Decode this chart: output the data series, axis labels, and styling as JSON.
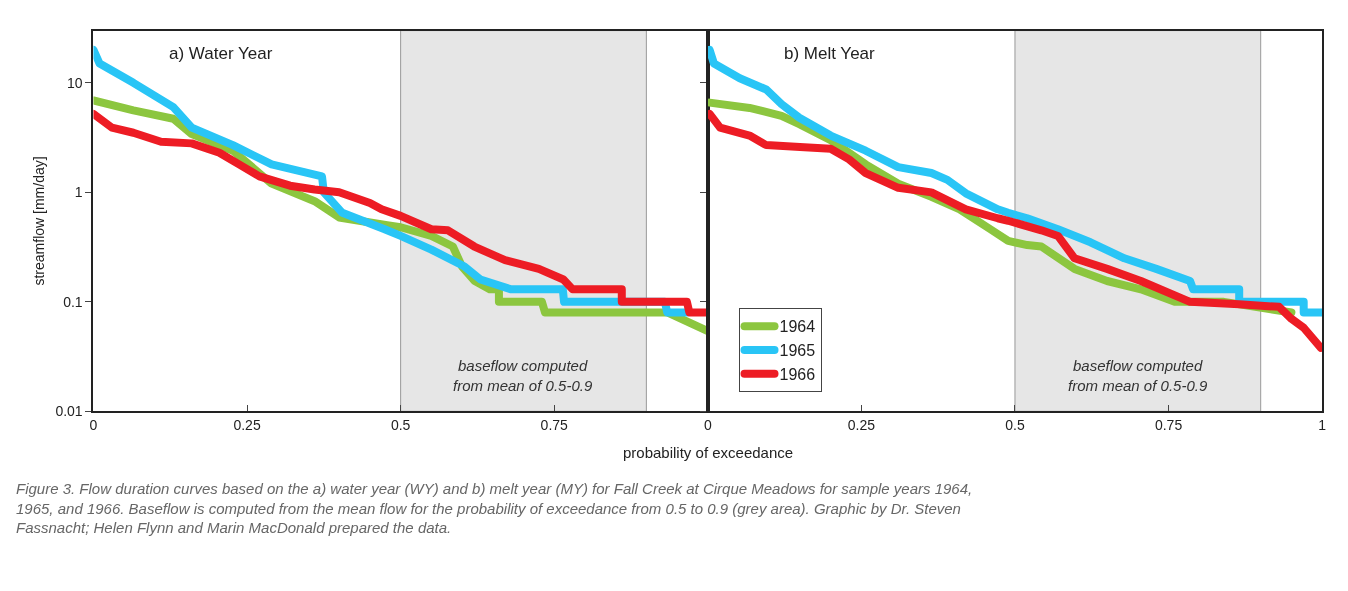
{
  "chart_data": [
    {
      "type": "line",
      "title": "a) Water Year",
      "xlabel": "probability of exceedance",
      "ylabel": "streamflow [mm/day]",
      "log": "y",
      "xlim": [
        0,
        1
      ],
      "xticks": [
        0,
        0.25,
        0.5,
        0.75
      ],
      "ylim": [
        0.01,
        30
      ],
      "yticks": [
        0.01,
        0.1,
        1,
        10
      ],
      "grid": false,
      "legend": false,
      "line_style": "solid",
      "marker": "none",
      "bands": [
        {
          "axis": "x",
          "from": 0.5,
          "to": 0.9,
          "label": "baseflow computed\nfrom mean of 0.5-0.9",
          "color": "#e6e6e6"
        }
      ],
      "annotations": [
        "Figure 3. Flow duration curves based on the a) water year (WY) and b) melt year (MY) for Fall Creek at Cirque Meadows for sample years 1964,\n1965, and 1966. Baseflow is computed from the mean flow for the probability of exceedance from 0.5 to 0.9 (grey area). Graphic by Dr. Steven\nFassnacht; Helen Flynn and Marin MacDonald prepared the data."
      ],
      "series": [
        {
          "color": "#8cc63f",
          "x": [
            0,
            0.065,
            0.13,
            0.16,
            0.227,
            0.29,
            0.36,
            0.4,
            0.478,
            0.5,
            0.55,
            0.585,
            0.6,
            0.62,
            0.645,
            0.66,
            0.66,
            0.73,
            0.735,
            0.934,
            1.0
          ],
          "values": [
            6.9,
            5.6,
            4.7,
            3.4,
            2.4,
            1.2,
            0.83,
            0.59,
            0.5,
            0.48,
            0.4,
            0.32,
            0.21,
            0.156,
            0.13,
            0.13,
            0.1,
            0.1,
            0.08,
            0.08,
            0.054
          ]
        },
        {
          "color": "#29c5f6",
          "x": [
            0,
            0.01,
            0.065,
            0.13,
            0.16,
            0.227,
            0.29,
            0.372,
            0.375,
            0.405,
            0.474,
            0.5,
            0.55,
            0.604,
            0.63,
            0.68,
            0.764,
            0.766,
            0.93,
            0.934,
            0.966
          ],
          "values": [
            20,
            15,
            10,
            6,
            3.9,
            2.7,
            1.8,
            1.4,
            1.0,
            0.65,
            0.46,
            0.4,
            0.3,
            0.21,
            0.16,
            0.13,
            0.13,
            0.1,
            0.1,
            0.08,
            0.08
          ]
        },
        {
          "color": "#ed1c24",
          "x": [
            0,
            0.03,
            0.065,
            0.11,
            0.16,
            0.205,
            0.237,
            0.27,
            0.32,
            0.36,
            0.4,
            0.45,
            0.469,
            0.5,
            0.55,
            0.577,
            0.62,
            0.67,
            0.725,
            0.765,
            0.78,
            0.86,
            0.86,
            0.966,
            0.97,
            1.0
          ],
          "values": [
            5.2,
            3.9,
            3.5,
            2.9,
            2.8,
            2.3,
            1.8,
            1.4,
            1.15,
            1.06,
            1.0,
            0.8,
            0.7,
            0.61,
            0.46,
            0.45,
            0.32,
            0.24,
            0.2,
            0.16,
            0.13,
            0.13,
            0.1,
            0.1,
            0.08,
            0.08
          ]
        }
      ]
    },
    {
      "type": "line",
      "title": "b) Melt Year",
      "log": "y",
      "xlim": [
        0,
        1
      ],
      "xticks": [
        0,
        0.25,
        0.5,
        0.75,
        1
      ],
      "ylim": [
        0.01,
        30
      ],
      "yticks": [
        0.01,
        0.1,
        1,
        10
      ],
      "tick_labels": "x",
      "grid": false,
      "legend": "bottom left",
      "line_style": "solid",
      "marker": "none",
      "bands": [
        {
          "axis": "x",
          "from": 0.5,
          "to": 0.9,
          "label": "baseflow computed\nfrom mean of 0.5-0.9",
          "color": "#e6e6e6"
        }
      ],
      "series": [
        {
          "name": "1964",
          "color": "#8cc63f",
          "x": [
            0.003,
            0.068,
            0.12,
            0.149,
            0.2,
            0.257,
            0.31,
            0.364,
            0.41,
            0.46,
            0.489,
            0.52,
            0.543,
            0.597,
            0.65,
            0.705,
            0.76,
            0.84,
            0.95
          ],
          "values": [
            6.6,
            5.9,
            5.0,
            4.2,
            3.0,
            1.8,
            1.2,
            0.91,
            0.7,
            0.46,
            0.36,
            0.33,
            0.32,
            0.2,
            0.155,
            0.13,
            0.1,
            0.1,
            0.08
          ]
        },
        {
          "name": "1965",
          "color": "#29c5f6",
          "x": [
            0.003,
            0.01,
            0.052,
            0.095,
            0.12,
            0.149,
            0.2,
            0.257,
            0.31,
            0.364,
            0.39,
            0.42,
            0.472,
            0.489,
            0.52,
            0.57,
            0.623,
            0.678,
            0.73,
            0.785,
            0.79,
            0.865,
            0.865,
            0.97,
            0.97,
            1.0
          ],
          "values": [
            20,
            15,
            11,
            8.7,
            6.4,
            4.8,
            3.3,
            2.4,
            1.7,
            1.5,
            1.3,
            0.98,
            0.7,
            0.65,
            0.58,
            0.46,
            0.35,
            0.25,
            0.2,
            0.155,
            0.13,
            0.13,
            0.1,
            0.1,
            0.08,
            0.08
          ]
        },
        {
          "name": "1966",
          "color": "#ed1c24",
          "x": [
            0.003,
            0.02,
            0.068,
            0.095,
            0.15,
            0.2,
            0.23,
            0.257,
            0.31,
            0.364,
            0.42,
            0.472,
            0.489,
            0.543,
            0.57,
            0.597,
            0.65,
            0.705,
            0.785,
            0.865,
            0.93,
            0.95,
            0.97,
            0.998
          ],
          "values": [
            5.2,
            3.9,
            3.3,
            2.7,
            2.6,
            2.5,
            2.0,
            1.5,
            1.1,
            1.0,
            0.7,
            0.58,
            0.55,
            0.45,
            0.4,
            0.25,
            0.2,
            0.155,
            0.1,
            0.095,
            0.09,
            0.07,
            0.058,
            0.038
          ]
        }
      ]
    }
  ]
}
